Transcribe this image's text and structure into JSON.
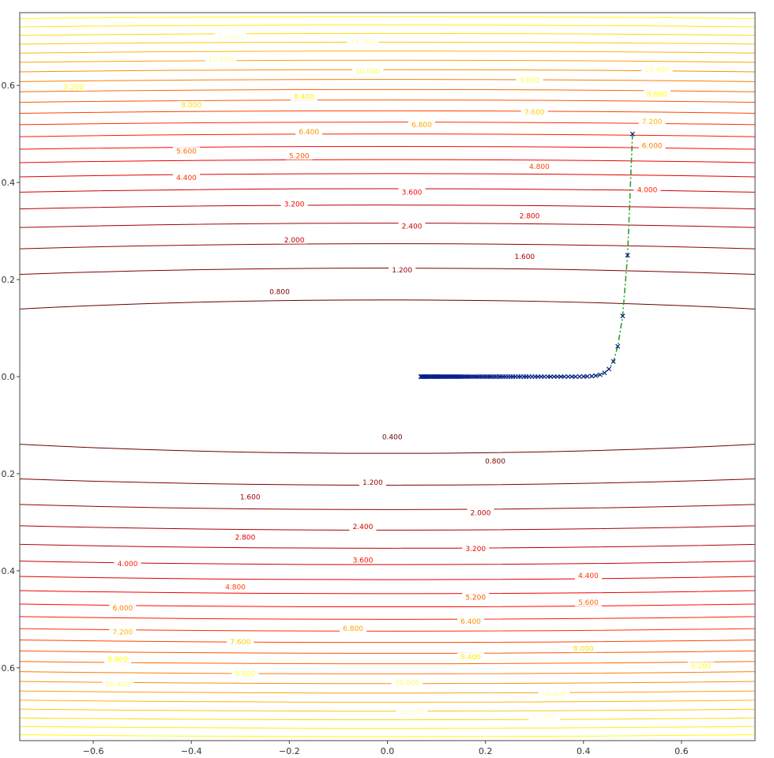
{
  "chart_data": {
    "type": "contour",
    "title": "",
    "xlabel": "",
    "ylabel": "",
    "xlim": [
      -0.75,
      0.75
    ],
    "ylim": [
      -0.75,
      0.75
    ],
    "x_ticks": [
      -0.6,
      -0.4,
      -0.2,
      0.0,
      0.2,
      0.4,
      0.6
    ],
    "y_ticks": [
      -0.6,
      -0.4,
      -0.2,
      0.0,
      0.2,
      0.4,
      0.6
    ],
    "x_tick_labels": [
      "−0.6",
      "−0.4",
      "−0.2",
      "0.0",
      "0.2",
      "0.4",
      "0.6"
    ],
    "y_tick_labels": [
      "−0.6",
      "−0.4",
      "−0.2",
      "0.0",
      "0.2",
      "0.4",
      "0.6"
    ],
    "function": "f(x, y) = 0.16 x^2 + 16 y^2",
    "grid": false,
    "legend": "none",
    "colormap": "hot",
    "contour_levels": [
      0.4,
      0.8,
      1.2,
      1.6,
      2.0,
      2.4,
      2.8,
      3.2,
      3.6,
      4.0,
      4.4,
      4.8,
      5.2,
      5.6,
      6.0,
      6.4,
      6.8,
      7.2,
      7.6,
      8.0,
      8.4,
      8.8,
      9.2,
      9.6,
      10.0,
      10.4,
      10.8,
      11.2,
      11.6
    ],
    "contour_label_positions": [
      {
        "level": 0.4,
        "x": 0.01,
        "y": -0.124
      },
      {
        "level": 0.8,
        "x": -0.22,
        "y": 0.175
      },
      {
        "level": 0.8,
        "x": 0.22,
        "y": -0.174
      },
      {
        "level": 1.2,
        "x": 0.03,
        "y": 0.22
      },
      {
        "level": 1.2,
        "x": -0.03,
        "y": -0.218
      },
      {
        "level": 1.6,
        "x": 0.28,
        "y": 0.248
      },
      {
        "level": 1.6,
        "x": -0.28,
        "y": -0.248
      },
      {
        "level": 2.0,
        "x": -0.19,
        "y": 0.282
      },
      {
        "level": 2.0,
        "x": 0.19,
        "y": -0.28
      },
      {
        "level": 2.4,
        "x": 0.05,
        "y": 0.31
      },
      {
        "level": 2.4,
        "x": -0.05,
        "y": -0.309
      },
      {
        "level": 2.8,
        "x": 0.29,
        "y": 0.331
      },
      {
        "level": 2.8,
        "x": -0.29,
        "y": -0.331
      },
      {
        "level": 3.2,
        "x": -0.19,
        "y": 0.356
      },
      {
        "level": 3.2,
        "x": 0.18,
        "y": -0.354
      },
      {
        "level": 3.6,
        "x": 0.05,
        "y": 0.38
      },
      {
        "level": 3.6,
        "x": -0.05,
        "y": -0.378
      },
      {
        "level": 4.0,
        "x": 0.53,
        "y": 0.385
      },
      {
        "level": 4.0,
        "x": -0.53,
        "y": -0.385
      },
      {
        "level": 4.4,
        "x": -0.41,
        "y": 0.41
      },
      {
        "level": 4.4,
        "x": 0.41,
        "y": -0.41
      },
      {
        "level": 4.8,
        "x": 0.31,
        "y": 0.433
      },
      {
        "level": 4.8,
        "x": -0.31,
        "y": -0.433
      },
      {
        "level": 5.2,
        "x": -0.18,
        "y": 0.455
      },
      {
        "level": 5.2,
        "x": 0.18,
        "y": -0.454
      },
      {
        "level": 5.6,
        "x": -0.41,
        "y": 0.465
      },
      {
        "level": 5.6,
        "x": 0.41,
        "y": -0.465
      },
      {
        "level": 6.0,
        "x": 0.54,
        "y": 0.476
      },
      {
        "level": 6.0,
        "x": -0.54,
        "y": -0.476
      },
      {
        "level": 6.4,
        "x": -0.16,
        "y": 0.505
      },
      {
        "level": 6.4,
        "x": 0.17,
        "y": -0.504
      },
      {
        "level": 6.8,
        "x": 0.07,
        "y": 0.519
      },
      {
        "level": 6.8,
        "x": -0.07,
        "y": -0.519
      },
      {
        "level": 7.2,
        "x": 0.54,
        "y": 0.526
      },
      {
        "level": 7.2,
        "x": -0.54,
        "y": -0.526
      },
      {
        "level": 7.6,
        "x": 0.3,
        "y": 0.545
      },
      {
        "level": 7.6,
        "x": -0.3,
        "y": -0.546
      },
      {
        "level": 8.0,
        "x": -0.4,
        "y": 0.56
      },
      {
        "level": 8.0,
        "x": 0.4,
        "y": -0.56
      },
      {
        "level": 8.4,
        "x": -0.17,
        "y": 0.577
      },
      {
        "level": 8.4,
        "x": 0.17,
        "y": -0.577
      },
      {
        "level": 8.8,
        "x": 0.55,
        "y": 0.582
      },
      {
        "level": 8.8,
        "x": -0.55,
        "y": -0.582
      },
      {
        "level": 9.2,
        "x": -0.64,
        "y": 0.597
      },
      {
        "level": 9.2,
        "x": 0.64,
        "y": -0.596
      },
      {
        "level": 9.6,
        "x": 0.29,
        "y": 0.611
      },
      {
        "level": 9.6,
        "x": -0.29,
        "y": -0.611
      },
      {
        "level": 10.0,
        "x": -0.04,
        "y": 0.63
      },
      {
        "level": 10.0,
        "x": 0.04,
        "y": -0.63
      },
      {
        "level": 10.4,
        "x": 0.55,
        "y": 0.633
      },
      {
        "level": 10.4,
        "x": -0.55,
        "y": -0.633
      },
      {
        "level": 10.8,
        "x": -0.34,
        "y": 0.654
      },
      {
        "level": 10.8,
        "x": 0.34,
        "y": -0.654
      },
      {
        "level": 11.2,
        "x": -0.05,
        "y": 0.69
      },
      {
        "level": 11.2,
        "x": 0.05,
        "y": -0.69
      },
      {
        "level": 11.6,
        "x": -0.32,
        "y": 0.7
      },
      {
        "level": 11.6,
        "x": 0.32,
        "y": -0.7
      }
    ],
    "series": [
      {
        "marker": "x",
        "color": "#0a1f8f",
        "line_color": "#2ca02c",
        "line_style": "dashdot",
        "points": [
          [
            0.5,
            0.5
          ],
          [
            0.49,
            0.25
          ],
          [
            0.48,
            0.125
          ],
          [
            0.47,
            0.0625
          ],
          [
            0.461,
            0.03125
          ],
          [
            0.452,
            0.0156
          ],
          [
            0.443,
            0.0078
          ],
          [
            0.434,
            0.0039
          ],
          [
            0.425,
            0.002
          ],
          [
            0.417,
            0.001
          ],
          [
            0.408,
            0.0005
          ],
          [
            0.4,
            0.0002
          ],
          [
            0.392,
            0.0001
          ],
          [
            0.384,
            0.0
          ],
          [
            0.376,
            0.0
          ],
          [
            0.369,
            0.0
          ],
          [
            0.361,
            0.0
          ],
          [
            0.354,
            0.0
          ],
          [
            0.347,
            0.0
          ],
          [
            0.34,
            0.0
          ],
          [
            0.333,
            0.0
          ],
          [
            0.327,
            0.0
          ],
          [
            0.32,
            0.0
          ],
          [
            0.314,
            0.0
          ],
          [
            0.307,
            0.0
          ],
          [
            0.301,
            0.0
          ],
          [
            0.295,
            0.0
          ],
          [
            0.289,
            0.0
          ],
          [
            0.283,
            0.0
          ],
          [
            0.278,
            0.0
          ],
          [
            0.272,
            0.0
          ],
          [
            0.267,
            0.0
          ],
          [
            0.261,
            0.0
          ],
          [
            0.256,
            0.0
          ],
          [
            0.251,
            0.0
          ],
          [
            0.246,
            0.0
          ],
          [
            0.241,
            0.0
          ],
          [
            0.236,
            0.0
          ],
          [
            0.231,
            0.0
          ],
          [
            0.227,
            0.0
          ],
          [
            0.222,
            0.0
          ],
          [
            0.218,
            0.0
          ],
          [
            0.213,
            0.0
          ],
          [
            0.209,
            0.0
          ],
          [
            0.205,
            0.0
          ],
          [
            0.201,
            0.0
          ],
          [
            0.197,
            0.0
          ],
          [
            0.193,
            0.0
          ],
          [
            0.189,
            0.0
          ],
          [
            0.185,
            0.0
          ],
          [
            0.181,
            0.0
          ],
          [
            0.178,
            0.0
          ],
          [
            0.174,
            0.0
          ],
          [
            0.171,
            0.0
          ],
          [
            0.167,
            0.0
          ],
          [
            0.164,
            0.0
          ],
          [
            0.161,
            0.0
          ],
          [
            0.157,
            0.0
          ],
          [
            0.154,
            0.0
          ],
          [
            0.151,
            0.0
          ],
          [
            0.148,
            0.0
          ],
          [
            0.145,
            0.0
          ],
          [
            0.142,
            0.0
          ],
          [
            0.139,
            0.0
          ],
          [
            0.137,
            0.0
          ],
          [
            0.134,
            0.0
          ],
          [
            0.131,
            0.0
          ],
          [
            0.129,
            0.0
          ],
          [
            0.126,
            0.0
          ],
          [
            0.124,
            0.0
          ],
          [
            0.121,
            0.0
          ],
          [
            0.119,
            0.0
          ],
          [
            0.116,
            0.0
          ],
          [
            0.114,
            0.0
          ],
          [
            0.112,
            0.0
          ],
          [
            0.11,
            0.0
          ],
          [
            0.107,
            0.0
          ],
          [
            0.105,
            0.0
          ],
          [
            0.103,
            0.0
          ],
          [
            0.101,
            0.0
          ],
          [
            0.099,
            0.0
          ],
          [
            0.097,
            0.0
          ],
          [
            0.095,
            0.0
          ],
          [
            0.093,
            0.0
          ],
          [
            0.091,
            0.0
          ],
          [
            0.09,
            0.0
          ],
          [
            0.088,
            0.0
          ],
          [
            0.086,
            0.0
          ],
          [
            0.084,
            0.0
          ],
          [
            0.083,
            0.0
          ],
          [
            0.081,
            0.0
          ],
          [
            0.079,
            0.0
          ],
          [
            0.078,
            0.0
          ],
          [
            0.076,
            0.0
          ],
          [
            0.075,
            0.0
          ],
          [
            0.073,
            0.0
          ],
          [
            0.072,
            0.0
          ],
          [
            0.07,
            0.0
          ],
          [
            0.069,
            0.0
          ],
          [
            0.068,
            0.0
          ]
        ]
      }
    ]
  }
}
